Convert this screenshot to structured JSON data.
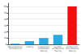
{
  "chart_data": {
    "type": "bar",
    "categories": [
      "Requirements/\nArchitecture",
      "Coding",
      "Integration/\nComponent\nTesting",
      "System/\nAcceptance\nTesting",
      "Production/\nPost-Release\nTesting"
    ],
    "values": [
      1,
      5,
      10,
      15,
      60
    ],
    "colors": [
      "#29abe2",
      "#29abe2",
      "#29abe2",
      "#29abe2",
      "#ee1111"
    ],
    "ylim": [
      0,
      65
    ],
    "yticks": [
      0,
      10,
      20,
      30,
      40,
      50,
      60
    ],
    "grid": true
  }
}
